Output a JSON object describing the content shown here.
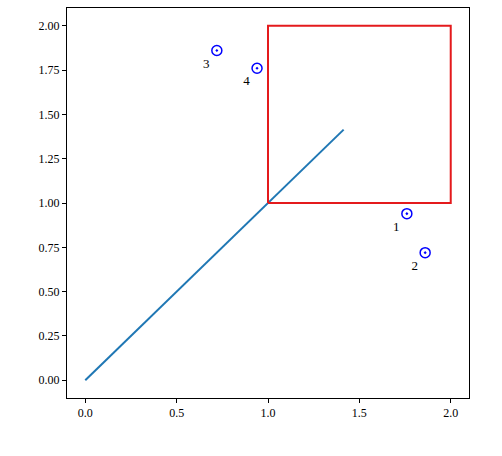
{
  "chart_data": {
    "type": "scatter",
    "xlim": [
      -0.1,
      2.1
    ],
    "ylim": [
      -0.1,
      2.1
    ],
    "xticks": [
      {
        "value": 0,
        "label": "0.0"
      },
      {
        "value": 0.5,
        "label": "0.5"
      },
      {
        "value": 1,
        "label": "1.0"
      },
      {
        "value": 1.5,
        "label": "1.5"
      },
      {
        "value": 2,
        "label": "2.0"
      }
    ],
    "yticks": [
      {
        "value": 0,
        "label": "0.00"
      },
      {
        "value": 0.25,
        "label": "0.25"
      },
      {
        "value": 0.5,
        "label": "0.50"
      },
      {
        "value": 0.75,
        "label": "0.75"
      },
      {
        "value": 1,
        "label": "1.00"
      },
      {
        "value": 1.25,
        "label": "1.25"
      },
      {
        "value": 1.5,
        "label": "1.50"
      },
      {
        "value": 1.75,
        "label": "1.75"
      },
      {
        "value": 2,
        "label": "2.00"
      }
    ],
    "grid": false,
    "series": [
      {
        "type": "line",
        "color": "#1f77b4",
        "line_style": "solid",
        "x": [
          0,
          1.414
        ],
        "values": [
          0,
          1.414
        ]
      },
      {
        "type": "line",
        "color": "#e41a1c",
        "line_style": "solid",
        "x": [
          1,
          2,
          2,
          1,
          1
        ],
        "values": [
          1,
          1,
          2,
          2,
          1
        ]
      },
      {
        "type": "scatter",
        "color": "#0000ff",
        "marker": "circle-dot",
        "x": [
          1.76,
          1.86,
          0.72,
          0.94
        ],
        "values": [
          0.94,
          0.72,
          1.86,
          1.76
        ],
        "labels": [
          "1",
          "2",
          "3",
          "4"
        ]
      }
    ]
  }
}
